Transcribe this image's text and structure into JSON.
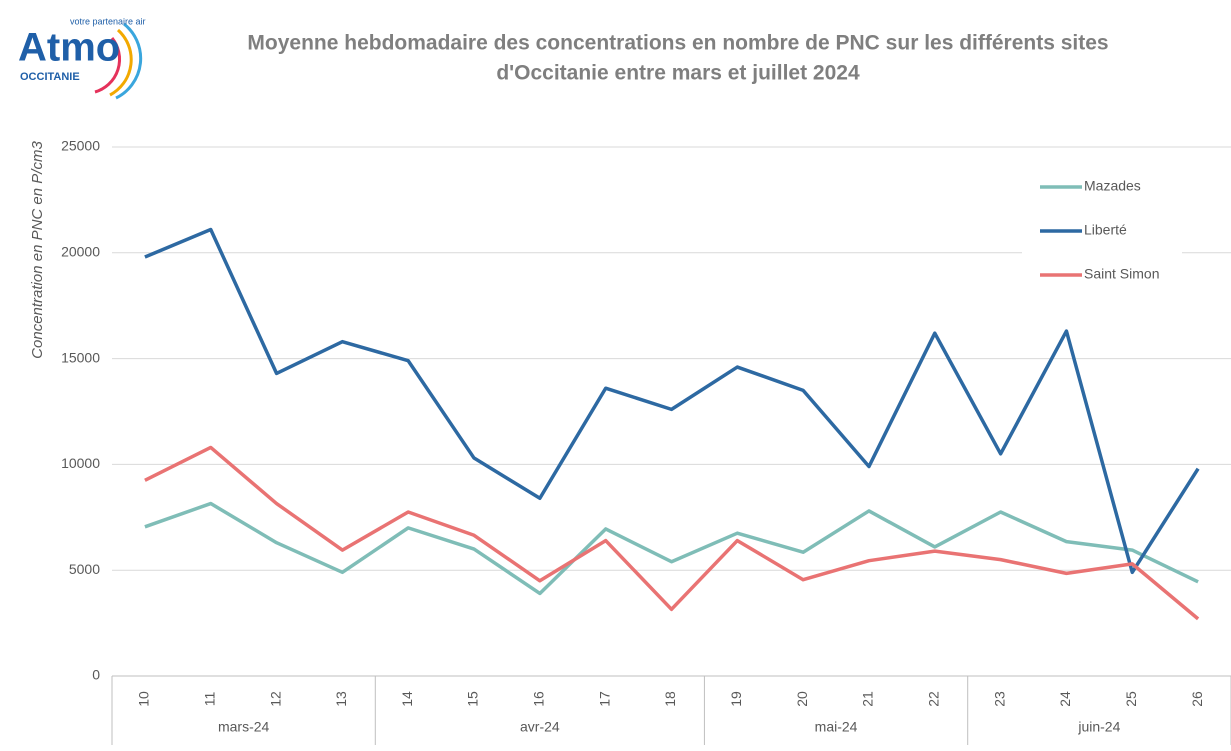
{
  "logo": {
    "name": "Atmo",
    "tagline": "votre partenaire air",
    "region": "OCCITANIE"
  },
  "chart_data": {
    "type": "line",
    "title": "Moyenne hebdomadaire des concentrations en nombre de PNC sur les différents sites",
    "subtitle": "d'Occitanie entre mars et juillet 2024",
    "y_label": "Concentration en PNC en P/cm3",
    "categories": [
      "10",
      "11",
      "12",
      "13",
      "14",
      "15",
      "16",
      "17",
      "18",
      "19",
      "20",
      "21",
      "22",
      "23",
      "24",
      "25",
      "26"
    ],
    "x_groups": [
      {
        "label": "mars-24",
        "from": "10",
        "to": "13"
      },
      {
        "label": "avr-24",
        "from": "14",
        "to": "18"
      },
      {
        "label": "mai-24",
        "from": "19",
        "to": "22"
      },
      {
        "label": "juin-24",
        "from": "23",
        "to": "26"
      }
    ],
    "series": [
      {
        "name": "Mazades",
        "color": "#7fbdb7",
        "values": [
          7050,
          8150,
          6300,
          4900,
          7000,
          6000,
          3900,
          6950,
          5400,
          6750,
          5850,
          7800,
          6100,
          7750,
          6350,
          5950,
          4450
        ]
      },
      {
        "name": "Liberté",
        "color": "#2d69a2",
        "values": [
          19800,
          21100,
          14300,
          15800,
          14900,
          10300,
          8400,
          13600,
          12600,
          14600,
          13500,
          9900,
          16200,
          10500,
          16300,
          4900,
          9800
        ]
      },
      {
        "name": "Saint Simon",
        "color": "#e97373",
        "values": [
          9250,
          10800,
          8150,
          5950,
          7750,
          6650,
          4500,
          6400,
          3150,
          6400,
          4550,
          5450,
          5900,
          5500,
          4850,
          5300,
          2700
        ]
      }
    ],
    "ylim": [
      0,
      25000
    ],
    "yticks": [
      0,
      5000,
      10000,
      15000,
      20000,
      25000
    ],
    "grid": true,
    "legend": "top-right"
  }
}
